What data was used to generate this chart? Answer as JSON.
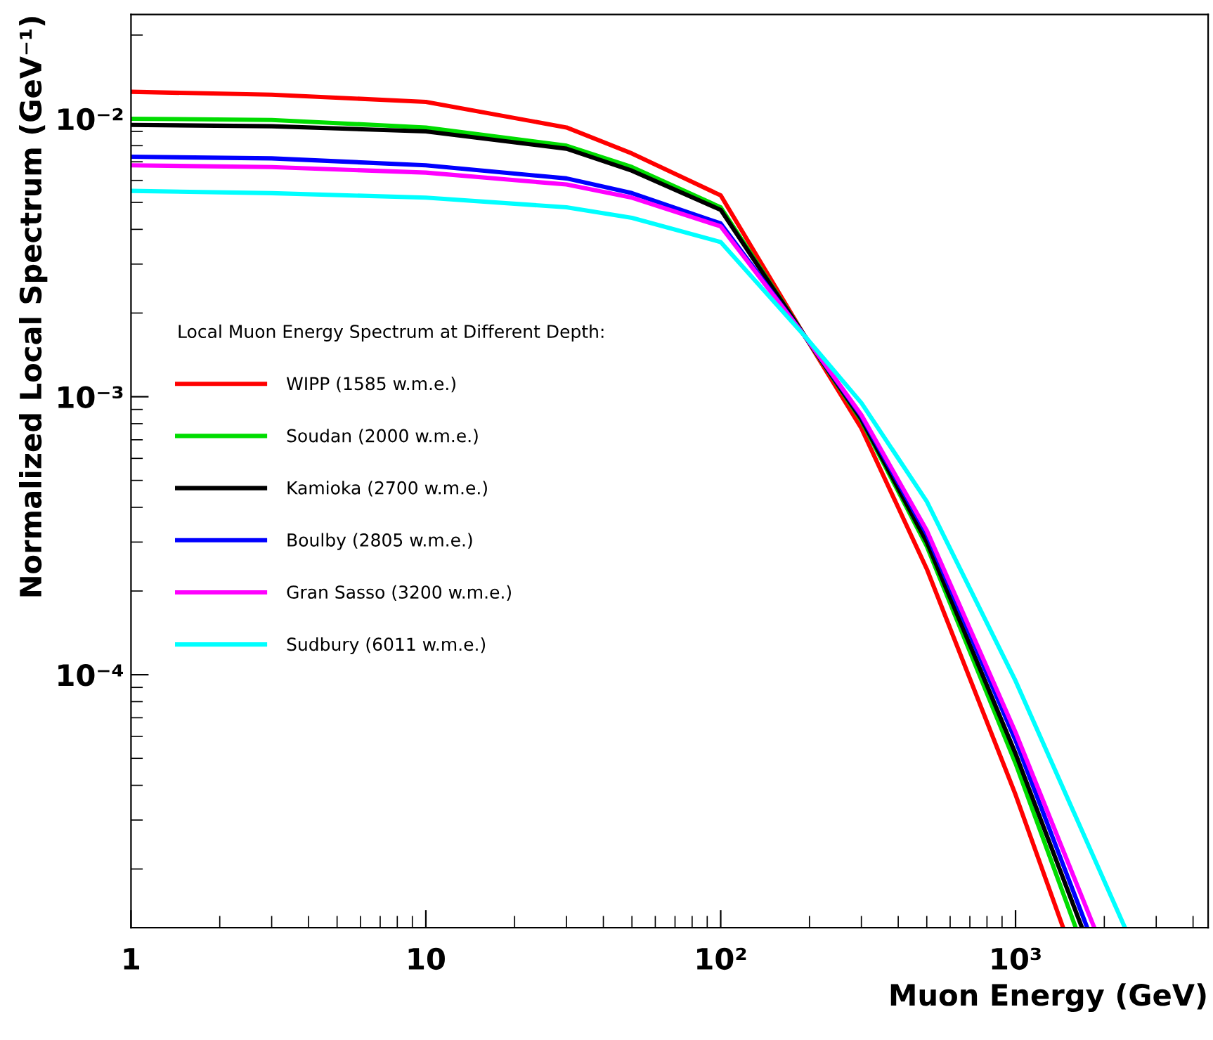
{
  "chart_data": {
    "type": "line",
    "xlabel": "Muon Energy (GeV)",
    "ylabel": "Normalized Local Spectrum (GeV⁻¹)",
    "log": "xy",
    "xlim": [
      1,
      4500
    ],
    "ylim": [
      1.23e-05,
      0.0237
    ],
    "xticks": [
      1,
      10,
      {
        "value": 100,
        "label": "10²"
      },
      {
        "value": 1000,
        "label": "10³"
      }
    ],
    "yticks": [
      {
        "value": 0.01,
        "label": "10⁻²"
      },
      {
        "value": 0.001,
        "label": "10⁻³"
      },
      {
        "value": 0.0001,
        "label": "10⁻⁴"
      }
    ],
    "legend": "left",
    "legend_title": "Local Muon Energy Spectrum at Different Depth:",
    "grid": false,
    "line_style": "solid",
    "marker": "none",
    "series": [
      {
        "name": "WIPP (1585 w.m.e.)",
        "color": "#ff0000",
        "x": [
          1,
          3,
          10,
          30,
          50,
          100,
          193,
          300,
          500,
          1000,
          1450
        ],
        "values": [
          0.0125,
          0.0122,
          0.0115,
          0.0093,
          0.0075,
          0.0053,
          0.00165,
          0.00077,
          0.00024,
          3.7e-05,
          1.23e-05
        ]
      },
      {
        "name": "Soudan (2000 w.m.e.)",
        "color": "#00dd00",
        "x": [
          1,
          3,
          10,
          30,
          50,
          100,
          193,
          300,
          500,
          1000,
          1600
        ],
        "values": [
          0.01,
          0.0099,
          0.0093,
          0.008,
          0.0067,
          0.0048,
          0.00165,
          0.00082,
          0.00029,
          4.8e-05,
          1.23e-05
        ]
      },
      {
        "name": "Kamioka (2700 w.m.e.)",
        "color": "#000000",
        "x": [
          1,
          3,
          10,
          30,
          50,
          100,
          193,
          300,
          500,
          1000,
          1680
        ],
        "values": [
          0.0095,
          0.0094,
          0.009,
          0.0078,
          0.0065,
          0.0047,
          0.00165,
          0.00083,
          0.0003,
          5.2e-05,
          1.23e-05
        ]
      },
      {
        "name": "Boulby (2805 w.m.e.)",
        "color": "#0000ff",
        "x": [
          1,
          3,
          10,
          30,
          50,
          100,
          193,
          300,
          500,
          1000,
          1750
        ],
        "values": [
          0.0073,
          0.0072,
          0.0068,
          0.0061,
          0.0054,
          0.0042,
          0.00165,
          0.00085,
          0.00032,
          5.8e-05,
          1.23e-05
        ]
      },
      {
        "name": "Gran Sasso (3200 w.m.e.)",
        "color": "#ff00ff",
        "x": [
          1,
          3,
          10,
          30,
          50,
          100,
          193,
          300,
          500,
          1000,
          1850
        ],
        "values": [
          0.0068,
          0.0067,
          0.0064,
          0.0058,
          0.0052,
          0.0041,
          0.00165,
          0.00086,
          0.00033,
          6.2e-05,
          1.23e-05
        ]
      },
      {
        "name": "Sudbury (6011 w.m.e.)",
        "color": "#00ffff",
        "x": [
          1,
          3,
          10,
          30,
          50,
          100,
          193,
          300,
          500,
          1000,
          2350
        ],
        "values": [
          0.0055,
          0.0054,
          0.0052,
          0.0048,
          0.0044,
          0.0036,
          0.00165,
          0.00095,
          0.00042,
          9.5e-05,
          1.23e-05
        ]
      }
    ]
  }
}
